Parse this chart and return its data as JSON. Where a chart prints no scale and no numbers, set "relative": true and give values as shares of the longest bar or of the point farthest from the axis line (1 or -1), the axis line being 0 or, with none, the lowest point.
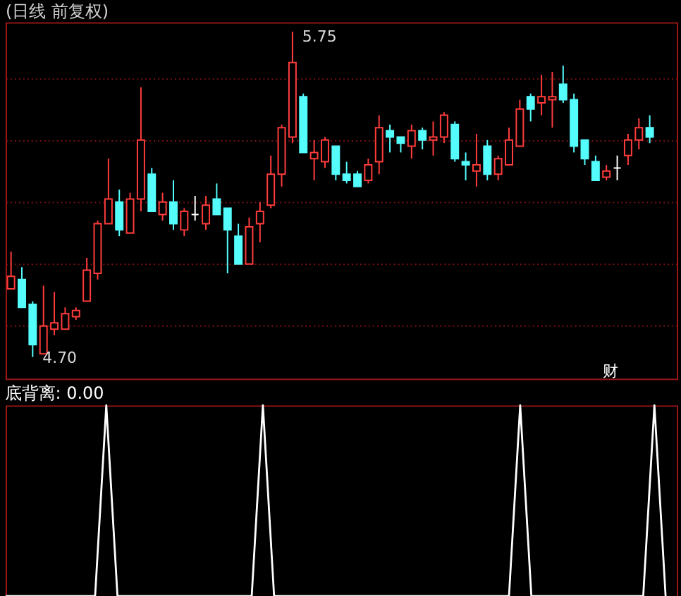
{
  "chart_data": [
    {
      "type": "candlestick",
      "title": "(日线 前复权)",
      "categories": [
        null,
        null,
        null,
        null,
        null,
        null,
        null,
        null,
        null,
        null,
        null,
        null,
        null,
        null,
        null,
        null,
        null,
        null,
        null,
        null,
        null,
        null,
        null,
        null,
        null,
        null,
        null,
        null,
        null,
        null,
        null,
        null,
        null,
        null,
        null,
        null,
        null,
        null,
        null,
        null,
        null,
        null,
        null,
        null,
        null,
        null,
        null,
        null,
        null,
        null,
        null,
        null,
        null,
        null,
        null,
        null,
        null,
        null,
        null,
        null
      ],
      "ohlc": [
        [
          4.92,
          5.04,
          4.92,
          4.96
        ],
        [
          4.95,
          4.99,
          4.86,
          4.86
        ],
        [
          4.87,
          4.88,
          4.7,
          4.74
        ],
        [
          4.71,
          4.93,
          4.71,
          4.8
        ],
        [
          4.79,
          4.91,
          4.77,
          4.81
        ],
        [
          4.79,
          4.86,
          4.79,
          4.84
        ],
        [
          4.83,
          4.86,
          4.82,
          4.85
        ],
        [
          4.88,
          5.02,
          4.88,
          4.98
        ],
        [
          4.97,
          5.14,
          4.95,
          5.13
        ],
        [
          5.13,
          5.34,
          5.13,
          5.21
        ],
        [
          5.2,
          5.24,
          5.09,
          5.11
        ],
        [
          5.1,
          5.23,
          5.1,
          5.21
        ],
        [
          5.21,
          5.57,
          5.17,
          5.4
        ],
        [
          5.29,
          5.31,
          5.17,
          5.17
        ],
        [
          5.16,
          5.23,
          5.14,
          5.2
        ],
        [
          5.2,
          5.27,
          5.11,
          5.13
        ],
        [
          5.11,
          5.18,
          5.09,
          5.17
        ],
        [
          5.16,
          5.22,
          5.14,
          5.16
        ],
        [
          5.13,
          5.22,
          5.11,
          5.19
        ],
        [
          5.21,
          5.26,
          5.16,
          5.16
        ],
        [
          5.18,
          5.18,
          4.97,
          5.11
        ],
        [
          5.09,
          5.13,
          5.0,
          5.0
        ],
        [
          5.0,
          5.15,
          5.0,
          5.12
        ],
        [
          5.13,
          5.2,
          5.07,
          5.17
        ],
        [
          5.19,
          5.35,
          5.18,
          5.29
        ],
        [
          5.29,
          5.45,
          5.25,
          5.44
        ],
        [
          5.41,
          5.75,
          5.39,
          5.65
        ],
        [
          5.54,
          5.55,
          5.36,
          5.36
        ],
        [
          5.34,
          5.4,
          5.27,
          5.36
        ],
        [
          5.33,
          5.41,
          5.31,
          5.4
        ],
        [
          5.38,
          5.38,
          5.27,
          5.29
        ],
        [
          5.29,
          5.33,
          5.26,
          5.27
        ],
        [
          5.29,
          5.3,
          5.25,
          5.25
        ],
        [
          5.27,
          5.34,
          5.26,
          5.32
        ],
        [
          5.33,
          5.48,
          5.29,
          5.44
        ],
        [
          5.43,
          5.45,
          5.36,
          5.41
        ],
        [
          5.41,
          5.41,
          5.36,
          5.39
        ],
        [
          5.38,
          5.45,
          5.34,
          5.43
        ],
        [
          5.43,
          5.44,
          5.37,
          5.4
        ],
        [
          5.4,
          5.46,
          5.35,
          5.41
        ],
        [
          5.41,
          5.49,
          5.39,
          5.48
        ],
        [
          5.45,
          5.46,
          5.33,
          5.34
        ],
        [
          5.33,
          5.36,
          5.27,
          5.32
        ],
        [
          5.3,
          5.42,
          5.25,
          5.32
        ],
        [
          5.38,
          5.4,
          5.27,
          5.29
        ],
        [
          5.29,
          5.35,
          5.27,
          5.34
        ],
        [
          5.32,
          5.44,
          5.32,
          5.4
        ],
        [
          5.38,
          5.53,
          5.38,
          5.5
        ],
        [
          5.54,
          5.55,
          5.46,
          5.5
        ],
        [
          5.52,
          5.61,
          5.48,
          5.54
        ],
        [
          5.53,
          5.62,
          5.44,
          5.54
        ],
        [
          5.58,
          5.64,
          5.52,
          5.53
        ],
        [
          5.53,
          5.55,
          5.36,
          5.38
        ],
        [
          5.4,
          5.4,
          5.32,
          5.34
        ],
        [
          5.33,
          5.35,
          5.27,
          5.27
        ],
        [
          5.28,
          5.32,
          5.27,
          5.3
        ],
        [
          5.31,
          5.35,
          5.27,
          5.31
        ],
        [
          5.35,
          5.42,
          5.32,
          5.4
        ],
        [
          5.4,
          5.47,
          5.37,
          5.44
        ],
        [
          5.44,
          5.48,
          5.39,
          5.41
        ]
      ],
      "colors": [
        "#ff3c3c",
        "#54fcfc",
        "#54fcfc",
        "#ff3c3c",
        "#ff3c3c",
        "#ff3c3c",
        "#ff3c3c",
        "#ff3c3c",
        "#ff3c3c",
        "#ff3c3c",
        "#54fcfc",
        "#ff3c3c",
        "#ff3c3c",
        "#54fcfc",
        "#ff3c3c",
        "#54fcfc",
        "#ff3c3c",
        "#ffffff",
        "#ff3c3c",
        "#54fcfc",
        "#54fcfc",
        "#54fcfc",
        "#ff3c3c",
        "#ff3c3c",
        "#ff3c3c",
        "#ff3c3c",
        "#ff3c3c",
        "#54fcfc",
        "#ff3c3c",
        "#ff3c3c",
        "#54fcfc",
        "#54fcfc",
        "#54fcfc",
        "#ff3c3c",
        "#ff3c3c",
        "#54fcfc",
        "#54fcfc",
        "#ff3c3c",
        "#54fcfc",
        "#ff3c3c",
        "#ff3c3c",
        "#54fcfc",
        "#54fcfc",
        "#ff3c3c",
        "#54fcfc",
        "#ff3c3c",
        "#ff3c3c",
        "#ff3c3c",
        "#54fcfc",
        "#ff3c3c",
        "#ff3c3c",
        "#54fcfc",
        "#54fcfc",
        "#54fcfc",
        "#54fcfc",
        "#ff3c3c",
        "#ffffff",
        "#ff3c3c",
        "#ff3c3c",
        "#54fcfc"
      ],
      "ylim": [
        4.63,
        5.78
      ],
      "yticks": [
        {
          "value": 4.8,
          "label": null
        },
        {
          "value": 5.0,
          "label": null
        },
        {
          "value": 5.2,
          "label": null
        },
        {
          "value": 5.4,
          "label": null
        },
        {
          "value": 5.6,
          "label": null
        }
      ],
      "grid": "y",
      "tick_labels": false,
      "annotations": [
        "5.75",
        "4.70",
        "财"
      ]
    },
    {
      "type": "line",
      "title": "底背离: 0.00",
      "relative": true,
      "tick_labels": false,
      "categories": [
        null,
        null,
        null,
        null,
        null,
        null,
        null,
        null,
        null,
        null,
        null,
        null,
        null,
        null,
        null,
        null,
        null,
        null,
        null,
        null,
        null,
        null,
        null,
        null,
        null,
        null,
        null,
        null,
        null,
        null,
        null,
        null,
        null,
        null,
        null,
        null,
        null,
        null,
        null,
        null,
        null,
        null,
        null,
        null,
        null,
        null,
        null,
        null,
        null,
        null,
        null,
        null,
        null,
        null,
        null,
        null,
        null,
        null,
        null,
        null
      ],
      "series": [
        {
          "color": "#ffffff",
          "values": [
            0,
            0,
            0,
            0,
            0,
            0,
            0,
            0,
            0,
            1,
            0,
            0,
            0,
            0,
            0,
            0,
            0,
            0,
            0,
            0,
            0,
            0,
            0,
            1,
            0,
            0,
            0,
            0,
            0,
            0,
            0,
            0,
            0,
            0,
            0,
            0,
            0,
            0,
            0,
            0,
            0,
            0,
            0,
            0,
            0,
            0,
            1,
            0,
            0,
            0,
            0,
            0,
            0,
            0,
            0,
            0,
            0,
            0,
            1,
            0
          ]
        }
      ]
    }
  ]
}
